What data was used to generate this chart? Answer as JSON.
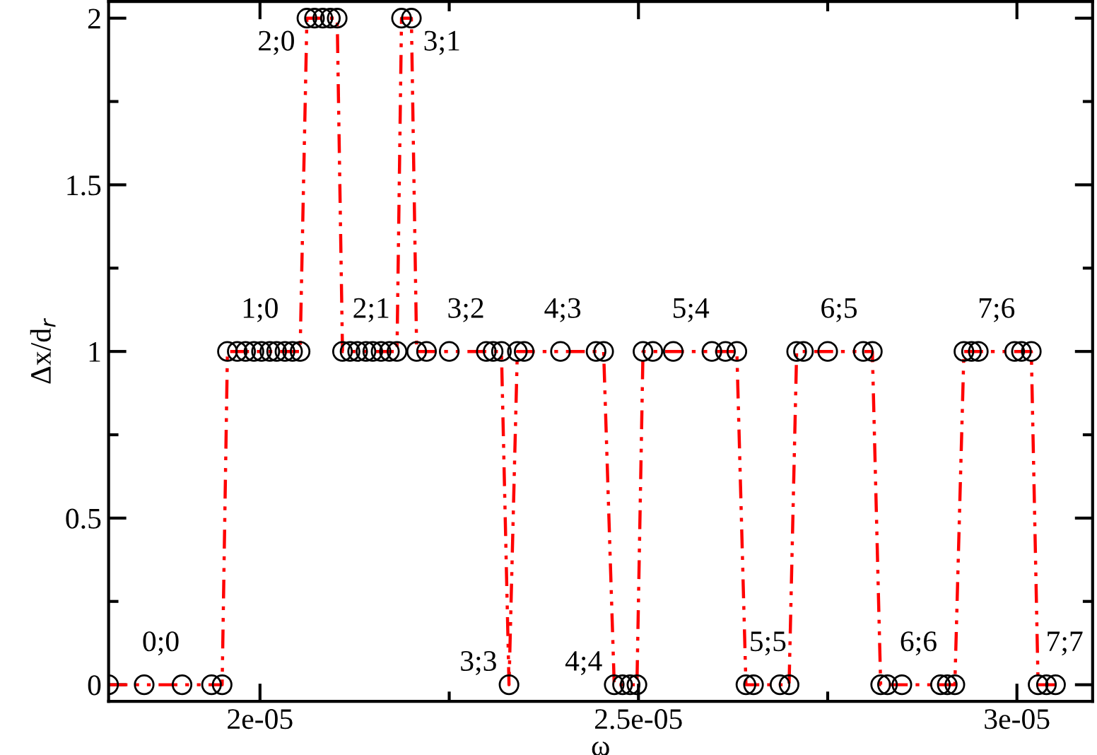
{
  "chart_data": {
    "type": "line",
    "xlabel": "ω",
    "ylabel": "Δx/d$_{r}$",
    "x": [
      1.8e-05,
      1.847e-05,
      1.897e-05,
      1.936e-05,
      1.95e-05,
      1.957e-05,
      1.97e-05,
      1.981e-05,
      1.992e-05,
      2.002e-05,
      2.013e-05,
      2.022e-05,
      2.033e-05,
      2.043e-05,
      2.053e-05,
      2.062e-05,
      2.072e-05,
      2.083e-05,
      2.093e-05,
      2.102e-05,
      2.109e-05,
      2.119e-05,
      2.129e-05,
      2.14e-05,
      2.149e-05,
      2.16e-05,
      2.171e-05,
      2.181e-05,
      2.187e-05,
      2.2e-05,
      2.207e-05,
      2.22e-05,
      2.25e-05,
      2.299e-05,
      2.308e-05,
      2.319e-05,
      2.329e-05,
      2.34e-05,
      2.349e-05,
      2.397e-05,
      2.444e-05,
      2.454e-05,
      2.468e-05,
      2.479e-05,
      2.489e-05,
      2.498e-05,
      2.506e-05,
      2.519e-05,
      2.546e-05,
      2.597e-05,
      2.615e-05,
      2.63e-05,
      2.642e-05,
      2.652e-05,
      2.687e-05,
      2.699e-05,
      2.709e-05,
      2.718e-05,
      2.75e-05,
      2.797e-05,
      2.809e-05,
      2.82e-05,
      2.829e-05,
      2.848e-05,
      2.899e-05,
      2.908e-05,
      2.918e-05,
      2.93e-05,
      2.94e-05,
      2.949e-05,
      2.997e-05,
      3.006e-05,
      3.019e-05,
      3.028e-05,
      3.039e-05,
      3.051e-05
    ],
    "series": [
      {
        "color": "#ff0000",
        "values": [
          0,
          0,
          0,
          0,
          0,
          1,
          1,
          1,
          1,
          1,
          1,
          1,
          1,
          1,
          1,
          2,
          2,
          2,
          2,
          2,
          1,
          1,
          1,
          1,
          1,
          1,
          1,
          1,
          2,
          2,
          1,
          1,
          1,
          1,
          1,
          1,
          0,
          1,
          1,
          1,
          1,
          1,
          0,
          0,
          0,
          0,
          1,
          1,
          1,
          1,
          1,
          1,
          0,
          0,
          0,
          0,
          1,
          1,
          1,
          1,
          1,
          0,
          0,
          0,
          0,
          0,
          0,
          1,
          1,
          1,
          1,
          1,
          1,
          0,
          0,
          0
        ]
      }
    ],
    "marker": "circle",
    "line_style": "dashdotdot",
    "grid": false,
    "legend": false,
    "xlim": [
      1.8e-05,
      3.1e-05
    ],
    "ylim": [
      -0.05,
      2.05
    ],
    "xticks": [
      {
        "value": 2e-05,
        "label": "2e-05"
      },
      {
        "value": 2.5e-05,
        "label": "2.5e-05"
      },
      {
        "value": 3e-05,
        "label": "3e-05"
      }
    ],
    "yticks": [
      0,
      0.5,
      1,
      1.5,
      2
    ],
    "annotations": [
      {
        "text": "0;0",
        "x": 1.869e-05,
        "y": 0
      },
      {
        "text": "1;0",
        "x": 2e-05,
        "y": 1
      },
      {
        "text": "2;0",
        "x": 2.062e-05,
        "y": 2
      },
      {
        "text": "2;1",
        "x": 2.147e-05,
        "y": 1
      },
      {
        "text": "3;1",
        "x": 2.2e-05,
        "y": 2
      },
      {
        "text": "3;2",
        "x": 2.272e-05,
        "y": 1
      },
      {
        "text": "3;3",
        "x": 2.329e-05,
        "y": 0
      },
      {
        "text": "4;3",
        "x": 2.4e-05,
        "y": 1
      },
      {
        "text": "4;4",
        "x": 2.468e-05,
        "y": 0
      },
      {
        "text": "5;4",
        "x": 2.569e-05,
        "y": 1
      },
      {
        "text": "5;5",
        "x": 2.671e-05,
        "y": 0
      },
      {
        "text": "6;5",
        "x": 2.765e-05,
        "y": 1
      },
      {
        "text": "6;6",
        "x": 2.87e-05,
        "y": 0
      },
      {
        "text": "7;6",
        "x": 2.973e-05,
        "y": 1
      },
      {
        "text": "7;7",
        "x": 3.063e-05,
        "y": 0
      }
    ]
  }
}
